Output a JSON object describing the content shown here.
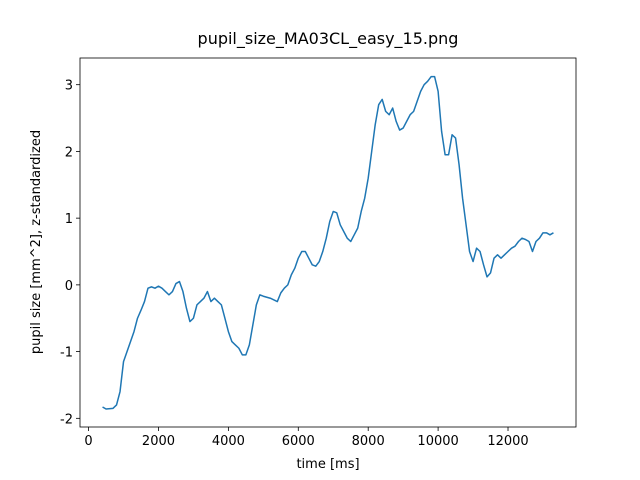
{
  "chart_data": {
    "type": "line",
    "title": "pupil_size_MA03CL_easy_15.png",
    "x_label": "time [ms]",
    "y_label": "pupil size [mm^2], z-standardized",
    "color": "#1f77b4",
    "x": [
      400,
      500,
      700,
      800,
      900,
      1000,
      1100,
      1200,
      1300,
      1400,
      1500,
      1600,
      1700,
      1800,
      1900,
      2000,
      2100,
      2200,
      2300,
      2400,
      2500,
      2600,
      2700,
      2800,
      2900,
      3000,
      3100,
      3200,
      3300,
      3400,
      3500,
      3600,
      3700,
      3800,
      3900,
      4000,
      4100,
      4200,
      4300,
      4400,
      4500,
      4600,
      4700,
      4800,
      4900,
      5000,
      5200,
      5400,
      5500,
      5600,
      5700,
      5800,
      5900,
      6000,
      6100,
      6200,
      6300,
      6400,
      6500,
      6600,
      6700,
      6800,
      6900,
      7000,
      7100,
      7200,
      7300,
      7400,
      7500,
      7600,
      7700,
      7800,
      7900,
      8000,
      8100,
      8200,
      8300,
      8400,
      8500,
      8600,
      8700,
      8800,
      8900,
      9000,
      9100,
      9200,
      9300,
      9400,
      9500,
      9600,
      9700,
      9800,
      9900,
      10000,
      10100,
      10200,
      10300,
      10400,
      10500,
      10600,
      10700,
      10800,
      10900,
      11000,
      11100,
      11200,
      11300,
      11400,
      11500,
      11600,
      11700,
      11800,
      11900,
      12000,
      12100,
      12200,
      12300,
      12400,
      12500,
      12600,
      12700,
      12800,
      12900,
      13000,
      13100,
      13200,
      13300
    ],
    "values": [
      -1.83,
      -1.86,
      -1.85,
      -1.8,
      -1.6,
      -1.15,
      -1.0,
      -0.85,
      -0.7,
      -0.5,
      -0.38,
      -0.25,
      -0.05,
      -0.03,
      -0.05,
      -0.02,
      -0.05,
      -0.1,
      -0.15,
      -0.1,
      0.02,
      0.05,
      -0.1,
      -0.35,
      -0.55,
      -0.5,
      -0.3,
      -0.25,
      -0.2,
      -0.1,
      -0.25,
      -0.2,
      -0.25,
      -0.3,
      -0.5,
      -0.7,
      -0.85,
      -0.9,
      -0.95,
      -1.05,
      -1.05,
      -0.9,
      -0.6,
      -0.3,
      -0.15,
      -0.17,
      -0.2,
      -0.25,
      -0.12,
      -0.05,
      0.0,
      0.15,
      0.25,
      0.4,
      0.5,
      0.5,
      0.4,
      0.3,
      0.28,
      0.35,
      0.5,
      0.7,
      0.95,
      1.1,
      1.08,
      0.9,
      0.8,
      0.7,
      0.65,
      0.75,
      0.85,
      1.1,
      1.3,
      1.6,
      2.0,
      2.4,
      2.7,
      2.78,
      2.6,
      2.55,
      2.65,
      2.45,
      2.32,
      2.35,
      2.45,
      2.55,
      2.6,
      2.75,
      2.9,
      3.0,
      3.05,
      3.12,
      3.12,
      2.9,
      2.3,
      1.95,
      1.95,
      2.25,
      2.2,
      1.8,
      1.3,
      0.9,
      0.5,
      0.35,
      0.55,
      0.5,
      0.3,
      0.12,
      0.18,
      0.4,
      0.45,
      0.4,
      0.45,
      0.5,
      0.55,
      0.58,
      0.65,
      0.7,
      0.68,
      0.65,
      0.5,
      0.65,
      0.7,
      0.78,
      0.78,
      0.75,
      0.78
    ],
    "xlim": [
      -245,
      13945
    ],
    "ylim": [
      -2.13,
      3.4
    ],
    "xticks": [
      0,
      2000,
      4000,
      6000,
      8000,
      10000,
      12000
    ],
    "yticks": [
      -2,
      -1,
      0,
      1,
      2,
      3
    ]
  }
}
